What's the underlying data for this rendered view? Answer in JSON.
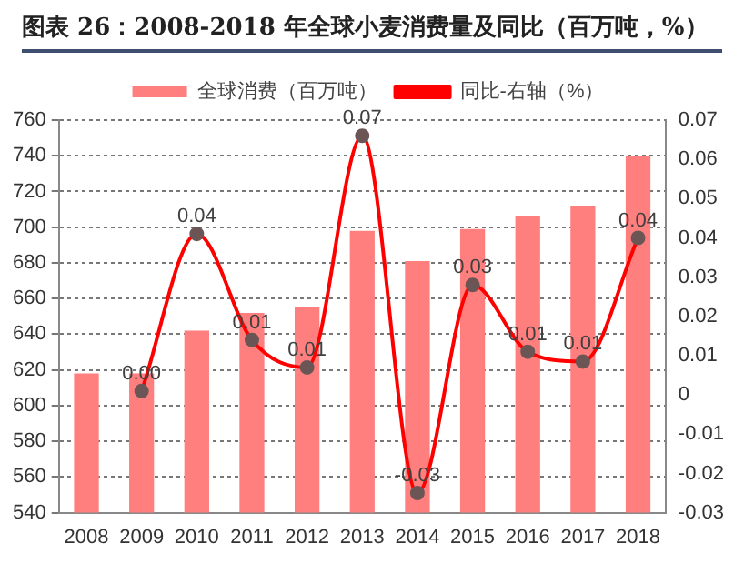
{
  "chart_data": {
    "type": "bar",
    "title": "图表 26：2008-2018 年全球小麦消费量及同比（百万吨，%）",
    "categories": [
      "2008",
      "2009",
      "2010",
      "2011",
      "2012",
      "2013",
      "2014",
      "2015",
      "2016",
      "2017",
      "2018"
    ],
    "series": [
      {
        "name": "全球消费（百万吨）",
        "color": "#ff7f7f",
        "values": [
          618,
          618,
          642,
          652,
          655,
          698,
          681,
          699,
          706,
          712,
          740
        ]
      },
      {
        "name": "同比-右轴（%）",
        "type": "line",
        "axis": "y2",
        "color": "#ff0000",
        "values": [
          null,
          0.001,
          0.041,
          0.014,
          0.007,
          0.066,
          -0.025,
          0.028,
          0.011,
          0.0085,
          0.04
        ],
        "value_labels": [
          null,
          "0.00",
          "0.04",
          "0.01",
          "0.01",
          "0.07",
          "-0.03",
          "0.03",
          "0.01",
          "0.01",
          "0.04"
        ]
      }
    ],
    "ylim": [
      540,
      760
    ],
    "yticks": [
      540,
      560,
      580,
      600,
      620,
      640,
      660,
      680,
      700,
      720,
      740,
      760
    ],
    "y2lim": [
      -0.03,
      0.07
    ],
    "y2ticks": [
      -0.03,
      -0.02,
      -0.01,
      0,
      0.01,
      0.02,
      0.03,
      0.04,
      0.05,
      0.06,
      0.07
    ],
    "grid": "y",
    "legend": "top",
    "marker": "circle",
    "line_style": "solid"
  }
}
